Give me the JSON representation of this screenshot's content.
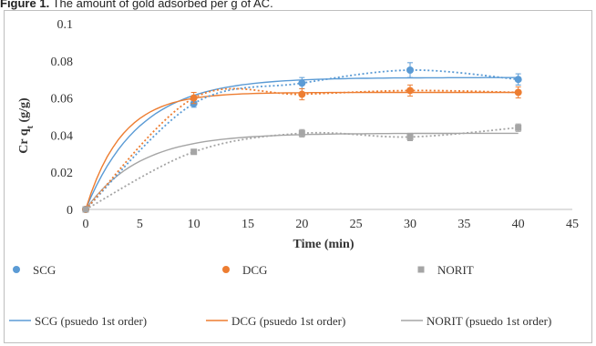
{
  "caption": {
    "label": "Figure 1.",
    "text": "The amount of gold adsorbed per g of AC."
  },
  "colors": {
    "SCG": "#5b9bd5",
    "DCG": "#ed7d31",
    "NORIT": "#a5a5a5",
    "axis": "#bfbfbf",
    "text": "#333333"
  },
  "chart_data": {
    "type": "scatter",
    "xlabel": "Time (min)",
    "ylabel": "Cr q",
    "ylabel_sub": "t",
    "ylabel_unit": " (g/g)",
    "xlim": [
      0,
      45
    ],
    "ylim": [
      0,
      0.1
    ],
    "xticks": [
      "0",
      "5",
      "10",
      "15",
      "20",
      "25",
      "30",
      "35",
      "40",
      "45"
    ],
    "yticks": [
      "0",
      "0.02",
      "0.04",
      "0.06",
      "0.08",
      "0.1"
    ],
    "xtick_values": [
      0,
      5,
      10,
      15,
      20,
      25,
      30,
      35,
      40,
      45
    ],
    "ytick_values": [
      0,
      0.02,
      0.04,
      0.06,
      0.08,
      0.1
    ],
    "grid": false,
    "legend_position": "bottom",
    "series": [
      {
        "name": "SCG",
        "x": [
          0,
          10,
          20,
          30,
          40
        ],
        "y": [
          0,
          0.057,
          0.068,
          0.075,
          0.07
        ],
        "error": [
          0,
          0.002,
          0.003,
          0.004,
          0.003
        ]
      },
      {
        "name": "DCG",
        "x": [
          0,
          10,
          20,
          30,
          40
        ],
        "y": [
          0,
          0.06,
          0.062,
          0.064,
          0.063
        ],
        "error": [
          0,
          0.003,
          0.003,
          0.003,
          0.003
        ]
      },
      {
        "name": "NORIT",
        "x": [
          0,
          10,
          20,
          30,
          40
        ],
        "y": [
          0,
          0.031,
          0.041,
          0.039,
          0.044
        ],
        "error": [
          0,
          0.001,
          0.002,
          0.002,
          0.002
        ]
      }
    ],
    "fit_series": [
      {
        "name": "SCG (psuedo 1st order)",
        "color_key": "SCG",
        "qe": 0.071,
        "k": 0.2
      },
      {
        "name": "DCG (psuedo 1st order)",
        "color_key": "DCG",
        "qe": 0.063,
        "k": 0.3
      },
      {
        "name": "NORIT (psuedo 1st order)",
        "color_key": "NORIT",
        "qe": 0.041,
        "k": 0.2
      }
    ],
    "trend_series": [
      {
        "color_key": "SCG"
      },
      {
        "color_key": "DCG"
      },
      {
        "color_key": "NORIT"
      }
    ]
  }
}
